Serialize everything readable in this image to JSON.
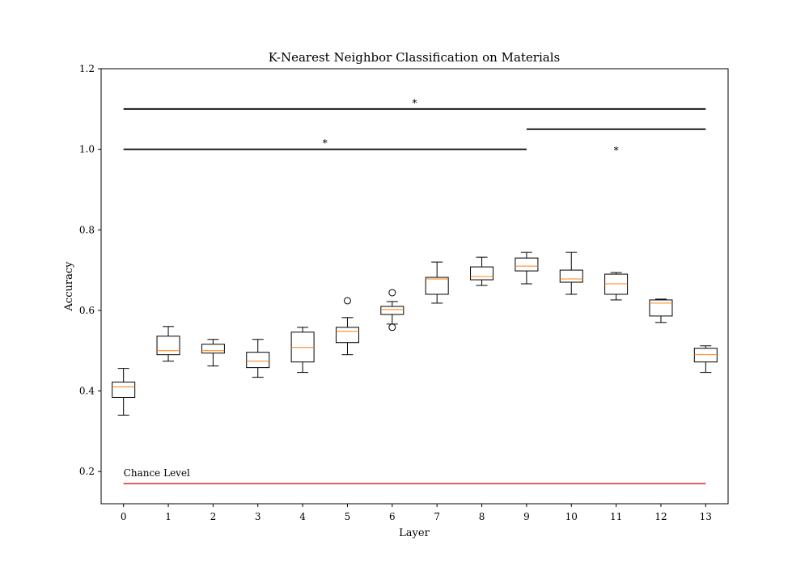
{
  "chart_data": {
    "type": "boxplot",
    "title": "K-Nearest Neighbor Classification on Materials",
    "xlabel": "Layer",
    "ylabel": "Accuracy",
    "xlim": [
      -0.5,
      13.5
    ],
    "ylim": [
      0.12,
      1.2
    ],
    "xticks": [
      0,
      1,
      2,
      3,
      4,
      5,
      6,
      7,
      8,
      9,
      10,
      11,
      12,
      13
    ],
    "xtick_labels": [
      "0",
      "1",
      "2",
      "3",
      "4",
      "5",
      "6",
      "7",
      "8",
      "9",
      "10",
      "11",
      "12",
      "13"
    ],
    "yticks": [
      0.2,
      0.4,
      0.6,
      0.8,
      1.0,
      1.2
    ],
    "ytick_labels": [
      "0.2",
      "0.4",
      "0.6",
      "0.8",
      "1.0",
      "1.2"
    ],
    "grid": false,
    "colors": {
      "box": "#000000",
      "median": "#ff7f0e",
      "chance": "#d62728"
    },
    "boxes": [
      {
        "layer": 0,
        "whislo": 0.34,
        "q1": 0.384,
        "med": 0.41,
        "q3": 0.422,
        "whishi": 0.456,
        "fliers": []
      },
      {
        "layer": 1,
        "whislo": 0.474,
        "q1": 0.49,
        "med": 0.5,
        "q3": 0.536,
        "whishi": 0.56,
        "fliers": []
      },
      {
        "layer": 2,
        "whislo": 0.462,
        "q1": 0.494,
        "med": 0.5,
        "q3": 0.516,
        "whishi": 0.528,
        "fliers": []
      },
      {
        "layer": 3,
        "whislo": 0.434,
        "q1": 0.458,
        "med": 0.474,
        "q3": 0.496,
        "whishi": 0.528,
        "fliers": []
      },
      {
        "layer": 4,
        "whislo": 0.446,
        "q1": 0.472,
        "med": 0.508,
        "q3": 0.546,
        "whishi": 0.558,
        "fliers": []
      },
      {
        "layer": 5,
        "whislo": 0.49,
        "q1": 0.52,
        "med": 0.548,
        "q3": 0.558,
        "whishi": 0.582,
        "fliers": [
          0.624
        ]
      },
      {
        "layer": 6,
        "whislo": 0.566,
        "q1": 0.59,
        "med": 0.602,
        "q3": 0.61,
        "whishi": 0.622,
        "fliers": [
          0.644,
          0.558
        ]
      },
      {
        "layer": 7,
        "whislo": 0.618,
        "q1": 0.64,
        "med": 0.678,
        "q3": 0.682,
        "whishi": 0.72,
        "fliers": []
      },
      {
        "layer": 8,
        "whislo": 0.662,
        "q1": 0.676,
        "med": 0.684,
        "q3": 0.708,
        "whishi": 0.732,
        "fliers": []
      },
      {
        "layer": 9,
        "whislo": 0.666,
        "q1": 0.698,
        "med": 0.71,
        "q3": 0.73,
        "whishi": 0.744,
        "fliers": []
      },
      {
        "layer": 10,
        "whislo": 0.64,
        "q1": 0.67,
        "med": 0.678,
        "q3": 0.7,
        "whishi": 0.744,
        "fliers": []
      },
      {
        "layer": 11,
        "whislo": 0.626,
        "q1": 0.64,
        "med": 0.666,
        "q3": 0.69,
        "whishi": 0.694,
        "fliers": []
      },
      {
        "layer": 12,
        "whislo": 0.57,
        "q1": 0.586,
        "med": 0.618,
        "q3": 0.626,
        "whishi": 0.628,
        "fliers": []
      },
      {
        "layer": 13,
        "whislo": 0.446,
        "q1": 0.472,
        "med": 0.49,
        "q3": 0.506,
        "whishi": 0.512,
        "fliers": []
      }
    ],
    "chance_level": {
      "label": "Chance Level",
      "y": 0.17,
      "x_start": 0,
      "x_end": 13
    },
    "significance_bars": [
      {
        "x_start": 0,
        "x_end": 13,
        "y": 1.1,
        "label": "*",
        "label_x": 6.5,
        "label_y": 1.115
      },
      {
        "x_start": 0,
        "x_end": 9,
        "y": 1.0,
        "label": "*",
        "label_x": 4.5,
        "label_y": 1.015
      },
      {
        "x_start": 9,
        "x_end": 13,
        "y": 1.05,
        "label": "*",
        "label_x": 11,
        "label_y": 0.997
      }
    ]
  }
}
